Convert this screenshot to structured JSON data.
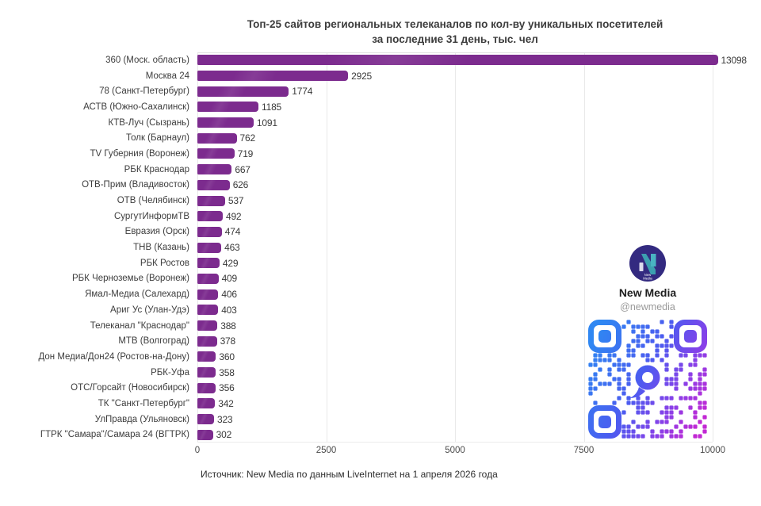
{
  "title": {
    "line1": "Топ-25 сайтов региональных телеканалов по кол-ву уникальных посетителей",
    "line2": "за последние 31 день, тыс. чел"
  },
  "chart_data": {
    "type": "bar",
    "orientation": "horizontal",
    "categories": [
      "360 (Моск. область)",
      "Москва 24",
      "78 (Санкт-Петербург)",
      "АСТВ (Южно-Сахалинск)",
      "КТВ-Луч (Сызрань)",
      "Толк (Барнаул)",
      "TV Губерния (Воронеж)",
      "РБК Краснодар",
      "ОТВ-Прим (Владивосток)",
      "ОТВ (Челябинск)",
      "СургутИнформТВ",
      "Евразия (Орск)",
      "ТНВ (Казань)",
      "РБК Ростов",
      "РБК Черноземье (Воронеж)",
      "Ямал-Медиа (Салехард)",
      "Ариг Ус (Улан-Удэ)",
      "Телеканал \"Краснодар\"",
      "МТВ (Волгоград)",
      "Дон Медиа/Дон24 (Ростов-на-Дону)",
      "РБК-Уфа",
      "ОТС/Горсайт (Новосибирск)",
      "ТК \"Санкт-Петербург\"",
      "УлПравда (Ульяновск)",
      "ГТРК \"Самара\"/Самара 24 (ВГТРК)"
    ],
    "values": [
      13098,
      2925,
      1774,
      1185,
      1091,
      762,
      719,
      667,
      626,
      537,
      492,
      474,
      463,
      429,
      409,
      406,
      403,
      388,
      378,
      360,
      358,
      356,
      342,
      323,
      302
    ],
    "xlim": [
      0,
      10000
    ],
    "xticks": [
      0,
      2500,
      5000,
      7500,
      10000
    ],
    "clip_value": 10100,
    "bar_color": "#7c2b8e",
    "grid": true,
    "legend": "none",
    "value_labels": true
  },
  "branding": {
    "name": "New Media",
    "handle": "@newmedia",
    "logo_text": [
      "New",
      "Media"
    ],
    "qr_gradient": [
      "#2f87f2",
      "#4b5cf0",
      "#8840e8",
      "#c228d4"
    ]
  },
  "footer": {
    "text": "Источник: New Media по данным LiveInternet на 1 апреля 2026 года"
  }
}
